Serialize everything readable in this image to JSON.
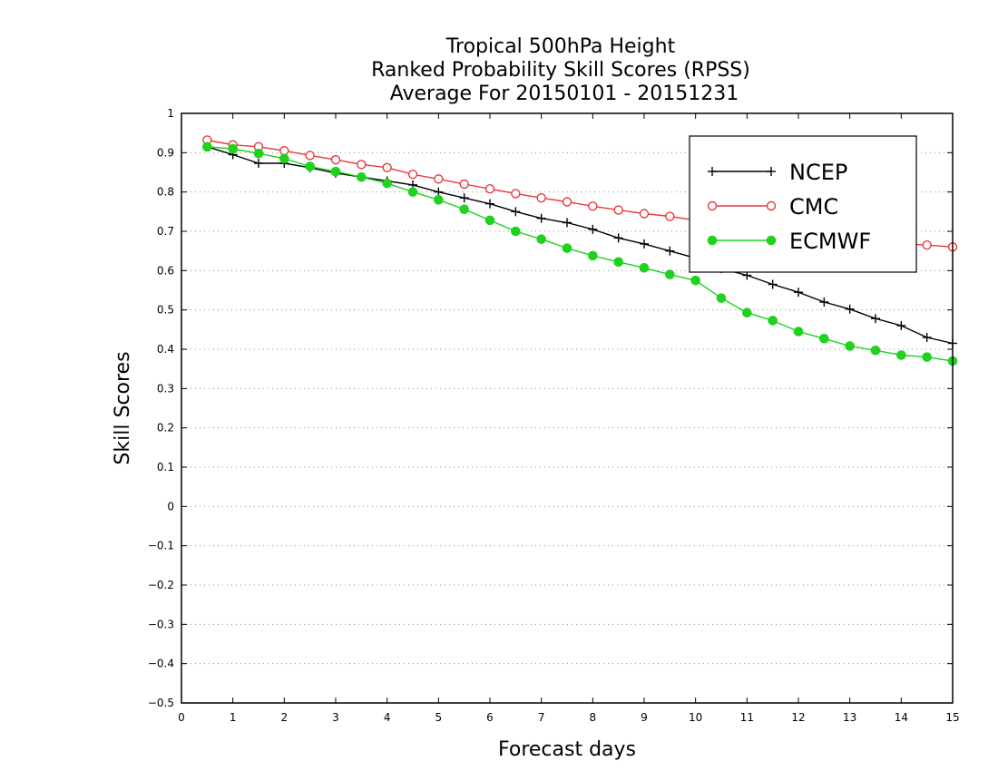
{
  "chart_data": {
    "type": "line",
    "title_lines": [
      "Tropical 500hPa Height",
      "Ranked Probability Skill Scores (RPSS)",
      "Average For 20150101 - 20151231"
    ],
    "xlabel": "Forecast days",
    "ylabel": "Skill Scores",
    "xlim": [
      0,
      15
    ],
    "ylim": [
      -0.5,
      1
    ],
    "xticks": [
      "0",
      "1",
      "2",
      "3",
      "4",
      "5",
      "6",
      "7",
      "8",
      "9",
      "10",
      "11",
      "12",
      "13",
      "14",
      "15"
    ],
    "yticks": [
      "−0.5",
      "−0.4",
      "−0.3",
      "−0.2",
      "−0.1",
      "0",
      "0.1",
      "0.2",
      "0.3",
      "0.4",
      "0.5",
      "0.6",
      "0.7",
      "0.8",
      "0.9",
      "1"
    ],
    "grid": "horizontal-dotted",
    "legend_position": "top-right",
    "x": [
      0.5,
      1,
      1.5,
      2,
      2.5,
      3,
      3.5,
      4,
      4.5,
      5,
      5.5,
      6,
      6.5,
      7,
      7.5,
      8,
      8.5,
      9,
      9.5,
      10,
      10.5,
      11,
      11.5,
      12,
      12.5,
      13,
      13.5,
      14,
      14.5,
      15
    ],
    "series": [
      {
        "name": "NCEP",
        "color": "#000000",
        "marker": "plus",
        "values": [
          0.915,
          0.895,
          0.873,
          0.873,
          0.862,
          0.848,
          0.838,
          0.828,
          0.818,
          0.8,
          0.785,
          0.77,
          0.75,
          0.733,
          0.722,
          0.705,
          0.683,
          0.668,
          0.65,
          0.632,
          0.605,
          0.588,
          0.565,
          0.545,
          0.52,
          0.502,
          0.478,
          0.46,
          0.43,
          0.415
        ]
      },
      {
        "name": "CMC",
        "color": "#e8393b",
        "marker": "open-circle",
        "values": [
          0.932,
          0.92,
          0.915,
          0.905,
          0.893,
          0.882,
          0.87,
          0.862,
          0.845,
          0.833,
          0.82,
          0.808,
          0.796,
          0.785,
          0.775,
          0.764,
          0.754,
          0.745,
          0.738,
          0.728,
          0.716,
          0.708,
          0.7,
          0.692,
          0.684,
          0.678,
          0.67,
          0.668,
          0.665,
          0.66
        ]
      },
      {
        "name": "ECMWF",
        "color": "#1ed21e",
        "marker": "filled-circle",
        "values": [
          0.915,
          0.91,
          0.898,
          0.885,
          0.865,
          0.852,
          0.838,
          0.822,
          0.8,
          0.78,
          0.756,
          0.728,
          0.7,
          0.68,
          0.657,
          0.638,
          0.622,
          0.607,
          0.59,
          0.575,
          0.53,
          0.493,
          0.473,
          0.445,
          0.427,
          0.408,
          0.397,
          0.385,
          0.38,
          0.37
        ]
      }
    ]
  }
}
